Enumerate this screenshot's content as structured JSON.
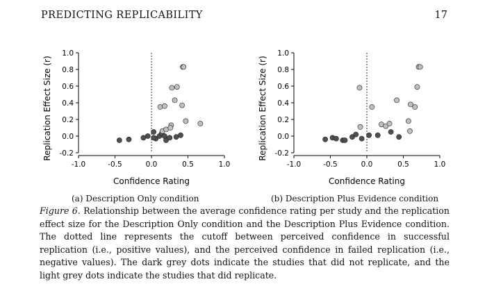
{
  "header": {
    "running_head": "PREDICTING REPLICABILITY",
    "page_number": "17"
  },
  "chart_data": [
    {
      "type": "scatter",
      "id": "a",
      "subcaption": "(a) Description Only condition",
      "xlabel": "Confidence Rating",
      "ylabel": "Replication Effect Size (r)",
      "xlim": [
        -1.0,
        1.0
      ],
      "ylim": [
        -0.2,
        1.0
      ],
      "xticks": [
        "-1.0",
        "-0.5",
        "0.0",
        "0.5",
        "1.0"
      ],
      "yticks": [
        "-0.2",
        "0.0",
        "0.2",
        "0.4",
        "0.6",
        "0.8",
        "1.0"
      ],
      "cutoff_x": 0.0,
      "colors": {
        "replicated": "#bfbfbf",
        "not_replicated": "#4f4f4f"
      },
      "series": [
        {
          "name": "did not replicate",
          "color": "not_replicated",
          "points": [
            [
              -0.44,
              -0.05
            ],
            [
              -0.31,
              -0.04
            ],
            [
              -0.11,
              -0.02
            ],
            [
              -0.05,
              0.0
            ],
            [
              0.03,
              0.05
            ],
            [
              0.06,
              -0.03
            ],
            [
              0.11,
              0.0
            ],
            [
              0.14,
              0.03
            ],
            [
              0.18,
              0.0
            ],
            [
              0.2,
              -0.05
            ],
            [
              0.25,
              -0.02
            ],
            [
              0.34,
              -0.01
            ],
            [
              0.4,
              0.01
            ],
            [
              0.03,
              -0.02
            ]
          ]
        },
        {
          "name": "did replicate",
          "color": "replicated",
          "points": [
            [
              0.43,
              0.83
            ],
            [
              0.44,
              0.83
            ],
            [
              0.28,
              0.58
            ],
            [
              0.35,
              0.59
            ],
            [
              0.32,
              0.43
            ],
            [
              0.42,
              0.37
            ],
            [
              0.12,
              0.35
            ],
            [
              0.18,
              0.36
            ],
            [
              0.15,
              0.06
            ],
            [
              0.2,
              0.08
            ],
            [
              0.27,
              0.13
            ],
            [
              0.47,
              0.18
            ],
            [
              0.67,
              0.15
            ],
            [
              0.26,
              0.1
            ]
          ]
        }
      ]
    },
    {
      "type": "scatter",
      "id": "b",
      "subcaption": "(b) Description Plus Evidence condition",
      "xlabel": "Confidence Rating",
      "ylabel": "Replication Effect Size (r)",
      "xlim": [
        -1.0,
        1.0
      ],
      "ylim": [
        -0.2,
        1.0
      ],
      "xticks": [
        "-1.0",
        "-0.5",
        "0.0",
        "0.5",
        "1.0"
      ],
      "yticks": [
        "-0.2",
        "0.0",
        "0.2",
        "0.4",
        "0.6",
        "0.8",
        "1.0"
      ],
      "cutoff_x": 0.0,
      "colors": {
        "replicated": "#bfbfbf",
        "not_replicated": "#4f4f4f"
      },
      "series": [
        {
          "name": "did not replicate",
          "color": "not_replicated",
          "points": [
            [
              -0.57,
              -0.04
            ],
            [
              -0.47,
              -0.02
            ],
            [
              -0.42,
              -0.03
            ],
            [
              -0.33,
              -0.05
            ],
            [
              -0.3,
              -0.05
            ],
            [
              -0.2,
              -0.01
            ],
            [
              -0.15,
              0.02
            ],
            [
              -0.07,
              -0.03
            ],
            [
              0.03,
              0.01
            ],
            [
              0.15,
              0.01
            ],
            [
              0.33,
              0.05
            ],
            [
              0.44,
              -0.01
            ]
          ]
        },
        {
          "name": "did replicate",
          "color": "replicated",
          "points": [
            [
              0.71,
              0.83
            ],
            [
              0.73,
              0.83
            ],
            [
              0.69,
              0.59
            ],
            [
              -0.1,
              0.58
            ],
            [
              0.41,
              0.43
            ],
            [
              0.6,
              0.38
            ],
            [
              0.66,
              0.35
            ],
            [
              0.07,
              0.35
            ],
            [
              0.2,
              0.14
            ],
            [
              0.26,
              0.12
            ],
            [
              0.31,
              0.15
            ],
            [
              0.57,
              0.18
            ],
            [
              0.59,
              0.06
            ],
            [
              -0.09,
              0.11
            ]
          ]
        }
      ]
    }
  ],
  "figure": {
    "label": "Figure 6",
    "caption": ". Relationship between the average confidence rating per study and the replication effect size for the Description Only condition and the Description Plus Evidence condition. The dotted line represents the cutoff between perceived confidence in successful replication (i.e., positive values), and the perceived confidence in failed replication (i.e., negative values). The dark grey dots indicate the studies that did not replicate, and the light grey dots indicate the studies that did replicate."
  }
}
